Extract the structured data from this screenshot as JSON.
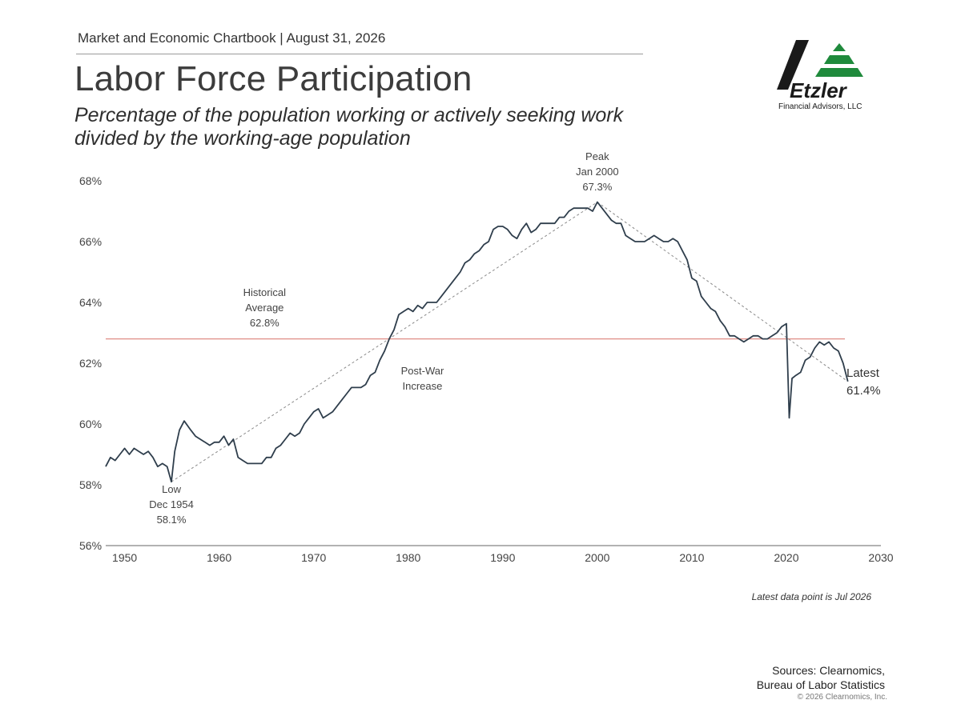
{
  "header": {
    "chartbook_line": "Market and Economic Chartbook | August 31, 2026",
    "title": "Labor Force Participation",
    "subtitle_line1": "Percentage of the population working or actively seeking work",
    "subtitle_line2": "divided by the working-age population"
  },
  "logo": {
    "name": "Etzler",
    "tagline": "Financial Advisors, LLC",
    "colors": {
      "mark": "#1a1a1a",
      "accent": "#1f8a3c"
    }
  },
  "chart_data": {
    "type": "line",
    "title": "Labor Force Participation",
    "xlim": [
      1948,
      2030
    ],
    "ylim": [
      56,
      68
    ],
    "x_ticks": [
      "1950",
      "1960",
      "1970",
      "1980",
      "1990",
      "2000",
      "2010",
      "2020",
      "2030"
    ],
    "y_ticks": [
      "56%",
      "58%",
      "60%",
      "62%",
      "64%",
      "66%",
      "68%"
    ],
    "colors": {
      "line": "#2f3e4c",
      "average": "#e08d86",
      "trend": "#8a8a8a"
    },
    "series": [
      {
        "values_xy": [
          [
            1948,
            58.6
          ],
          [
            1948.5,
            58.9
          ],
          [
            1949,
            58.8
          ],
          [
            1949.5,
            59.0
          ],
          [
            1950,
            59.2
          ],
          [
            1950.5,
            59.0
          ],
          [
            1951,
            59.2
          ],
          [
            1951.5,
            59.1
          ],
          [
            1952,
            59.0
          ],
          [
            1952.5,
            59.1
          ],
          [
            1953,
            58.9
          ],
          [
            1953.5,
            58.6
          ],
          [
            1954,
            58.7
          ],
          [
            1954.5,
            58.6
          ],
          [
            1954.95,
            58.1
          ],
          [
            1955.3,
            59.1
          ],
          [
            1955.8,
            59.8
          ],
          [
            1956.3,
            60.1
          ],
          [
            1957,
            59.8
          ],
          [
            1957.5,
            59.6
          ],
          [
            1958,
            59.5
          ],
          [
            1958.5,
            59.4
          ],
          [
            1959,
            59.3
          ],
          [
            1959.5,
            59.4
          ],
          [
            1960,
            59.4
          ],
          [
            1960.5,
            59.6
          ],
          [
            1961,
            59.3
          ],
          [
            1961.5,
            59.5
          ],
          [
            1962,
            58.9
          ],
          [
            1962.5,
            58.8
          ],
          [
            1963,
            58.7
          ],
          [
            1963.5,
            58.7
          ],
          [
            1964,
            58.7
          ],
          [
            1964.5,
            58.7
          ],
          [
            1965,
            58.9
          ],
          [
            1965.5,
            58.9
          ],
          [
            1966,
            59.2
          ],
          [
            1966.5,
            59.3
          ],
          [
            1967,
            59.5
          ],
          [
            1967.5,
            59.7
          ],
          [
            1968,
            59.6
          ],
          [
            1968.5,
            59.7
          ],
          [
            1969,
            60.0
          ],
          [
            1969.5,
            60.2
          ],
          [
            1970,
            60.4
          ],
          [
            1970.5,
            60.5
          ],
          [
            1971,
            60.2
          ],
          [
            1971.5,
            60.3
          ],
          [
            1972,
            60.4
          ],
          [
            1972.5,
            60.6
          ],
          [
            1973,
            60.8
          ],
          [
            1973.5,
            61.0
          ],
          [
            1974,
            61.2
          ],
          [
            1974.5,
            61.2
          ],
          [
            1975,
            61.2
          ],
          [
            1975.5,
            61.3
          ],
          [
            1976,
            61.6
          ],
          [
            1976.5,
            61.7
          ],
          [
            1977,
            62.1
          ],
          [
            1977.5,
            62.4
          ],
          [
            1978,
            62.8
          ],
          [
            1978.5,
            63.1
          ],
          [
            1979,
            63.6
          ],
          [
            1979.5,
            63.7
          ],
          [
            1980,
            63.8
          ],
          [
            1980.5,
            63.7
          ],
          [
            1981,
            63.9
          ],
          [
            1981.5,
            63.8
          ],
          [
            1982,
            64.0
          ],
          [
            1982.5,
            64.0
          ],
          [
            1983,
            64.0
          ],
          [
            1983.5,
            64.2
          ],
          [
            1984,
            64.4
          ],
          [
            1984.5,
            64.6
          ],
          [
            1985,
            64.8
          ],
          [
            1985.5,
            65.0
          ],
          [
            1986,
            65.3
          ],
          [
            1986.5,
            65.4
          ],
          [
            1987,
            65.6
          ],
          [
            1987.5,
            65.7
          ],
          [
            1988,
            65.9
          ],
          [
            1988.5,
            66.0
          ],
          [
            1989,
            66.4
          ],
          [
            1989.5,
            66.5
          ],
          [
            1990,
            66.5
          ],
          [
            1990.5,
            66.4
          ],
          [
            1991,
            66.2
          ],
          [
            1991.5,
            66.1
          ],
          [
            1992,
            66.4
          ],
          [
            1992.5,
            66.6
          ],
          [
            1993,
            66.3
          ],
          [
            1993.5,
            66.4
          ],
          [
            1994,
            66.6
          ],
          [
            1994.5,
            66.6
          ],
          [
            1995,
            66.6
          ],
          [
            1995.5,
            66.6
          ],
          [
            1996,
            66.8
          ],
          [
            1996.5,
            66.8
          ],
          [
            1997,
            67.0
          ],
          [
            1997.5,
            67.1
          ],
          [
            1998,
            67.1
          ],
          [
            1998.5,
            67.1
          ],
          [
            1999,
            67.1
          ],
          [
            1999.5,
            67.0
          ],
          [
            2000,
            67.3
          ],
          [
            2000.5,
            67.1
          ],
          [
            2001,
            66.9
          ],
          [
            2001.5,
            66.7
          ],
          [
            2002,
            66.6
          ],
          [
            2002.5,
            66.6
          ],
          [
            2003,
            66.2
          ],
          [
            2003.5,
            66.1
          ],
          [
            2004,
            66.0
          ],
          [
            2004.5,
            66.0
          ],
          [
            2005,
            66.0
          ],
          [
            2005.5,
            66.1
          ],
          [
            2006,
            66.2
          ],
          [
            2006.5,
            66.1
          ],
          [
            2007,
            66.0
          ],
          [
            2007.5,
            66.0
          ],
          [
            2008,
            66.1
          ],
          [
            2008.5,
            66.0
          ],
          [
            2009,
            65.7
          ],
          [
            2009.5,
            65.4
          ],
          [
            2010,
            64.8
          ],
          [
            2010.5,
            64.7
          ],
          [
            2011,
            64.2
          ],
          [
            2011.5,
            64.0
          ],
          [
            2012,
            63.8
          ],
          [
            2012.5,
            63.7
          ],
          [
            2013,
            63.4
          ],
          [
            2013.5,
            63.2
          ],
          [
            2014,
            62.9
          ],
          [
            2014.5,
            62.9
          ],
          [
            2015,
            62.8
          ],
          [
            2015.5,
            62.7
          ],
          [
            2016,
            62.8
          ],
          [
            2016.5,
            62.9
          ],
          [
            2017,
            62.9
          ],
          [
            2017.5,
            62.8
          ],
          [
            2018,
            62.8
          ],
          [
            2018.5,
            62.9
          ],
          [
            2019,
            63.0
          ],
          [
            2019.5,
            63.2
          ],
          [
            2020,
            63.3
          ],
          [
            2020.3,
            60.2
          ],
          [
            2020.6,
            61.5
          ],
          [
            2021,
            61.6
          ],
          [
            2021.5,
            61.7
          ],
          [
            2022,
            62.1
          ],
          [
            2022.5,
            62.2
          ],
          [
            2023,
            62.5
          ],
          [
            2023.5,
            62.7
          ],
          [
            2024,
            62.6
          ],
          [
            2024.5,
            62.7
          ],
          [
            2025,
            62.5
          ],
          [
            2025.5,
            62.4
          ],
          [
            2026,
            62.0
          ],
          [
            2026.5,
            61.4
          ]
        ]
      }
    ],
    "historical_average": {
      "value": 62.8,
      "label": [
        "Historical",
        "Average",
        "62.8%"
      ]
    },
    "low": {
      "x": 1954.95,
      "y": 58.1,
      "label": [
        "Low",
        "Dec 1954",
        "58.1%"
      ]
    },
    "peak": {
      "x": 2000,
      "y": 67.3,
      "label": [
        "Peak",
        "Jan 2000",
        "67.3%"
      ]
    },
    "post_war_label": [
      "Post-War",
      "Increase"
    ],
    "latest": {
      "x": 2026.5,
      "y": 61.4,
      "label": [
        "Latest",
        "61.4%"
      ]
    },
    "trend_lines": [
      [
        [
          1954.95,
          58.1
        ],
        [
          2000,
          67.3
        ]
      ],
      [
        [
          2000,
          67.3
        ],
        [
          2026.5,
          61.4
        ]
      ]
    ]
  },
  "footer": {
    "note": "Latest data point is Jul 2026",
    "sources_line1": "Sources: Clearnomics,",
    "sources_line2": "Bureau of Labor Statistics",
    "copyright": "© 2026 Clearnomics, Inc."
  }
}
